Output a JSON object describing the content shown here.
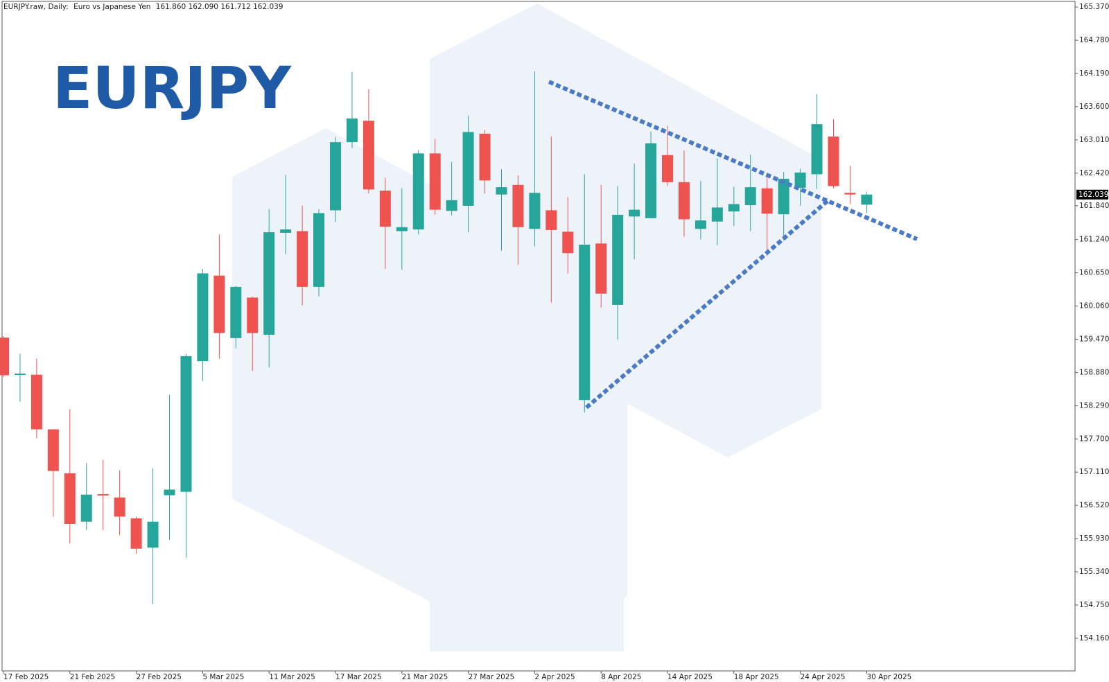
{
  "chart_data": {
    "type": "candlestick",
    "title": "EURJPY",
    "header": {
      "symbol": "EURJPY.raw, Daily:",
      "description": "Euro vs Japanese Yen",
      "ohlc": [
        "161.860",
        "162.090",
        "161.712",
        "162.039"
      ]
    },
    "categories": [
      "17 Feb 2025",
      null,
      null,
      null,
      "21 Feb 2025",
      null,
      null,
      null,
      "27 Feb 2025",
      null,
      null,
      null,
      "5 Mar 2025",
      null,
      null,
      null,
      "11 Mar 2025",
      null,
      null,
      null,
      "17 Mar 2025",
      null,
      null,
      null,
      "21 Mar 2025",
      null,
      null,
      null,
      "27 Mar 2025",
      null,
      null,
      null,
      "2 Apr 2025",
      null,
      null,
      null,
      "8 Apr 2025",
      null,
      null,
      null,
      "14 Apr 2025",
      null,
      null,
      null,
      "18 Apr 2025",
      null,
      null,
      null,
      "24 Apr 2025",
      null,
      null,
      null,
      "30 Apr 2025"
    ],
    "open": [
      159.5,
      158.84,
      158.84,
      157.87,
      157.09,
      156.23,
      156.72,
      156.66,
      156.29,
      155.77,
      156.7,
      156.76,
      159.08,
      160.6,
      159.49,
      160.21,
      159.55,
      161.36,
      161.39,
      160.4,
      161.76,
      162.97,
      163.35,
      162.11,
      161.39,
      161.42,
      162.77,
      161.75,
      161.84,
      163.12,
      162.04,
      162.21,
      161.43,
      161.76,
      161.38,
      158.39,
      161.17,
      160.08,
      161.65,
      161.62,
      162.74,
      162.26,
      161.43,
      161.56,
      161.74,
      161.85,
      162.15,
      161.69,
      162.16,
      162.4,
      163.07,
      162.07,
      161.86
    ],
    "high": [
      159.52,
      159.21,
      159.13,
      157.87,
      158.23,
      157.27,
      157.33,
      157.14,
      156.32,
      157.18,
      158.48,
      159.21,
      160.72,
      161.33,
      160.42,
      160.23,
      161.78,
      162.39,
      161.84,
      161.78,
      163.06,
      164.22,
      163.91,
      162.34,
      162.15,
      162.83,
      163.03,
      162.62,
      163.44,
      163.19,
      162.49,
      162.38,
      164.23,
      163.07,
      162.0,
      162.4,
      162.21,
      162.19,
      162.59,
      163.16,
      163.26,
      162.82,
      162.28,
      162.68,
      162.18,
      162.75,
      162.37,
      162.44,
      162.5,
      163.82,
      163.38,
      162.55,
      162.09
    ],
    "low": [
      158.8,
      158.36,
      157.71,
      156.32,
      155.84,
      156.08,
      156.08,
      155.99,
      155.66,
      154.77,
      155.91,
      155.59,
      158.73,
      159.12,
      159.31,
      158.91,
      158.97,
      160.98,
      160.07,
      160.23,
      161.55,
      162.86,
      162.06,
      160.72,
      160.7,
      161.33,
      161.68,
      161.67,
      161.37,
      162.06,
      161.04,
      160.79,
      161.12,
      160.12,
      160.64,
      158.17,
      160.03,
      159.46,
      160.89,
      161.62,
      162.19,
      161.29,
      161.24,
      161.14,
      161.48,
      161.39,
      160.95,
      161.23,
      161.84,
      162.14,
      162.15,
      161.87,
      161.712
    ],
    "close": [
      158.83,
      158.86,
      157.87,
      157.13,
      156.19,
      156.71,
      156.7,
      156.32,
      155.75,
      156.23,
      156.8,
      159.17,
      160.64,
      159.58,
      160.4,
      159.58,
      161.37,
      161.42,
      160.4,
      161.71,
      162.97,
      163.39,
      162.13,
      161.47,
      161.46,
      162.77,
      161.77,
      161.94,
      163.15,
      162.29,
      162.17,
      161.46,
      162.07,
      161.41,
      161.0,
      161.15,
      160.28,
      161.68,
      161.77,
      162.95,
      162.26,
      161.6,
      161.58,
      161.81,
      161.87,
      162.17,
      161.7,
      162.32,
      162.43,
      163.29,
      162.19,
      162.04,
      162.039
    ],
    "up_color": "#26a69a",
    "down_color": "#ef5350",
    "ylim": [
      153.58,
      165.47
    ],
    "yticks": [
      {
        "value": 165.37,
        "label": "165.370"
      },
      {
        "value": 164.78,
        "label": "164.780"
      },
      {
        "value": 164.19,
        "label": "164.190"
      },
      {
        "value": 163.6,
        "label": "163.600"
      },
      {
        "value": 163.01,
        "label": "163.010"
      },
      {
        "value": 162.42,
        "label": "162.420"
      },
      {
        "value": 161.84,
        "label": "161.840"
      },
      {
        "value": 161.24,
        "label": "161.240"
      },
      {
        "value": 160.65,
        "label": "160.650"
      },
      {
        "value": 160.06,
        "label": "160.060"
      },
      {
        "value": 159.47,
        "label": "159.470"
      },
      {
        "value": 158.88,
        "label": "158.880"
      },
      {
        "value": 158.29,
        "label": "158.290"
      },
      {
        "value": 157.7,
        "label": "157.700"
      },
      {
        "value": 157.11,
        "label": "157.110"
      },
      {
        "value": 156.52,
        "label": "156.520"
      },
      {
        "value": 155.93,
        "label": "155.930"
      },
      {
        "value": 155.34,
        "label": "155.340"
      },
      {
        "value": 154.75,
        "label": "154.750"
      },
      {
        "value": 154.16,
        "label": "154.160"
      }
    ],
    "last_price": {
      "value": 162.039,
      "label": "162.039"
    }
  }
}
